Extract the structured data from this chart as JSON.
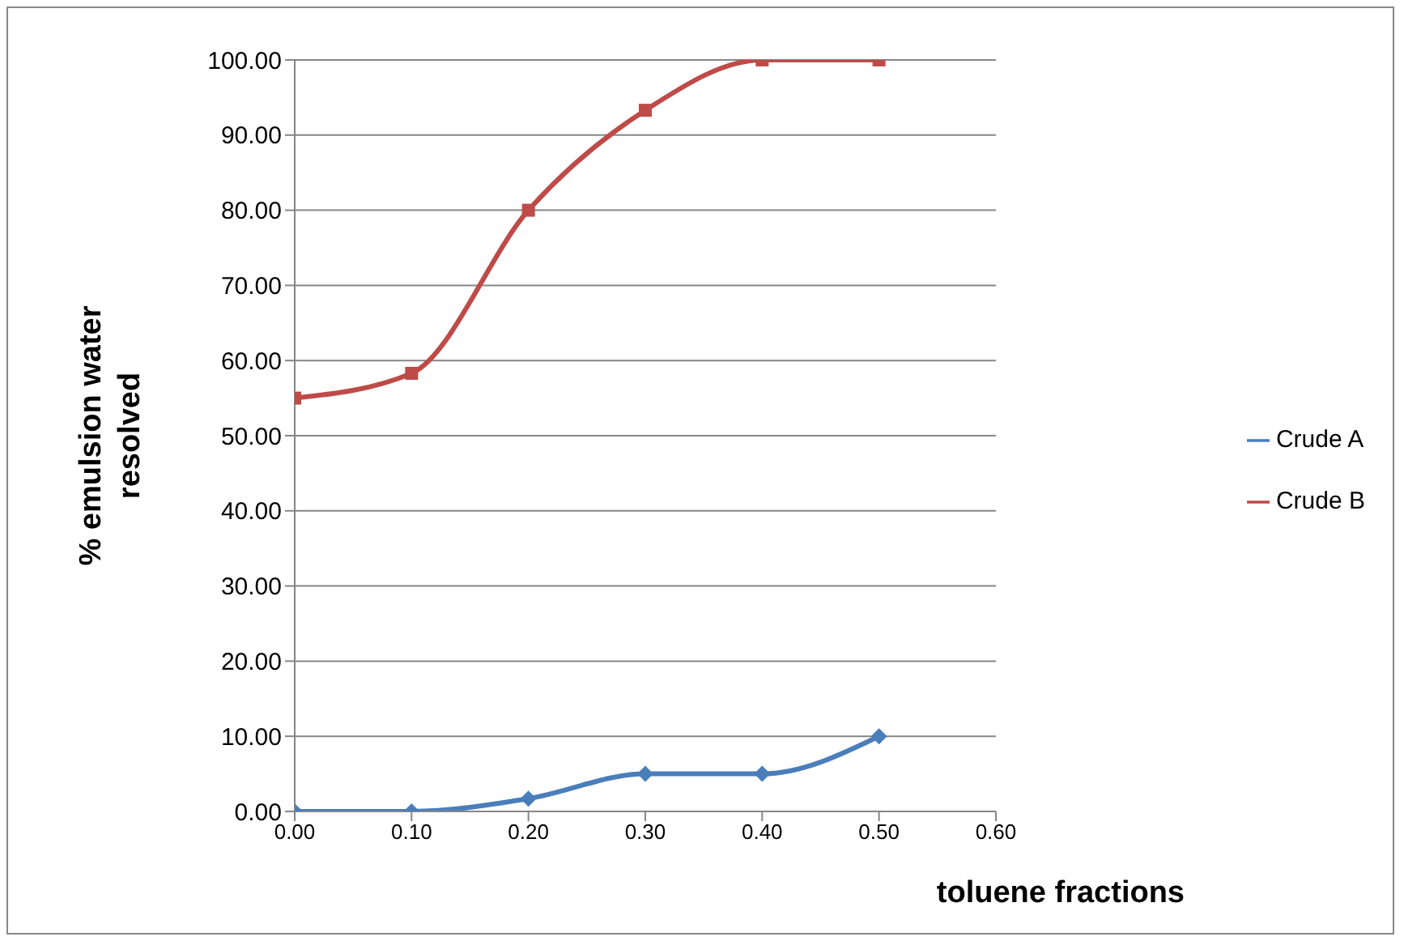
{
  "chart_data": {
    "type": "line",
    "xlabel": "toluene fractions",
    "ylabel": "% emulsion water resolved",
    "x": [
      0,
      0.1,
      0.2,
      0.3,
      0.4,
      0.5
    ],
    "series": [
      {
        "name": "Crude A",
        "color": "#4a7ebb",
        "marker": "diamond",
        "values": [
          0,
          0,
          1.7,
          5,
          5,
          10
        ]
      },
      {
        "name": "Crude B",
        "color": "#be4b48",
        "marker": "square",
        "values": [
          55,
          58.3,
          80,
          93.3,
          100,
          100
        ]
      }
    ],
    "xlim": [
      0,
      0.6
    ],
    "xticks": [
      {
        "value": 0,
        "label": "0.00"
      },
      {
        "value": 0.1,
        "label": "0.10"
      },
      {
        "value": 0.2,
        "label": "0.20"
      },
      {
        "value": 0.3,
        "label": "0.30"
      },
      {
        "value": 0.4,
        "label": "0.40"
      },
      {
        "value": 0.5,
        "label": "0.50"
      },
      {
        "value": 0.6,
        "label": "0.60"
      }
    ],
    "ylim": [
      0,
      100
    ],
    "yticks": [
      {
        "value": 0,
        "label": "0.00"
      },
      {
        "value": 10,
        "label": "10.00"
      },
      {
        "value": 20,
        "label": "20.00"
      },
      {
        "value": 30,
        "label": "30.00"
      },
      {
        "value": 40,
        "label": "40.00"
      },
      {
        "value": 50,
        "label": "50.00"
      },
      {
        "value": 60,
        "label": "60.00"
      },
      {
        "value": 70,
        "label": "70.00"
      },
      {
        "value": 80,
        "label": "80.00"
      },
      {
        "value": 90,
        "label": "90.00"
      },
      {
        "value": 100,
        "label": "100.00"
      }
    ],
    "grid": "y",
    "legend": "right",
    "line_style": "solid"
  }
}
